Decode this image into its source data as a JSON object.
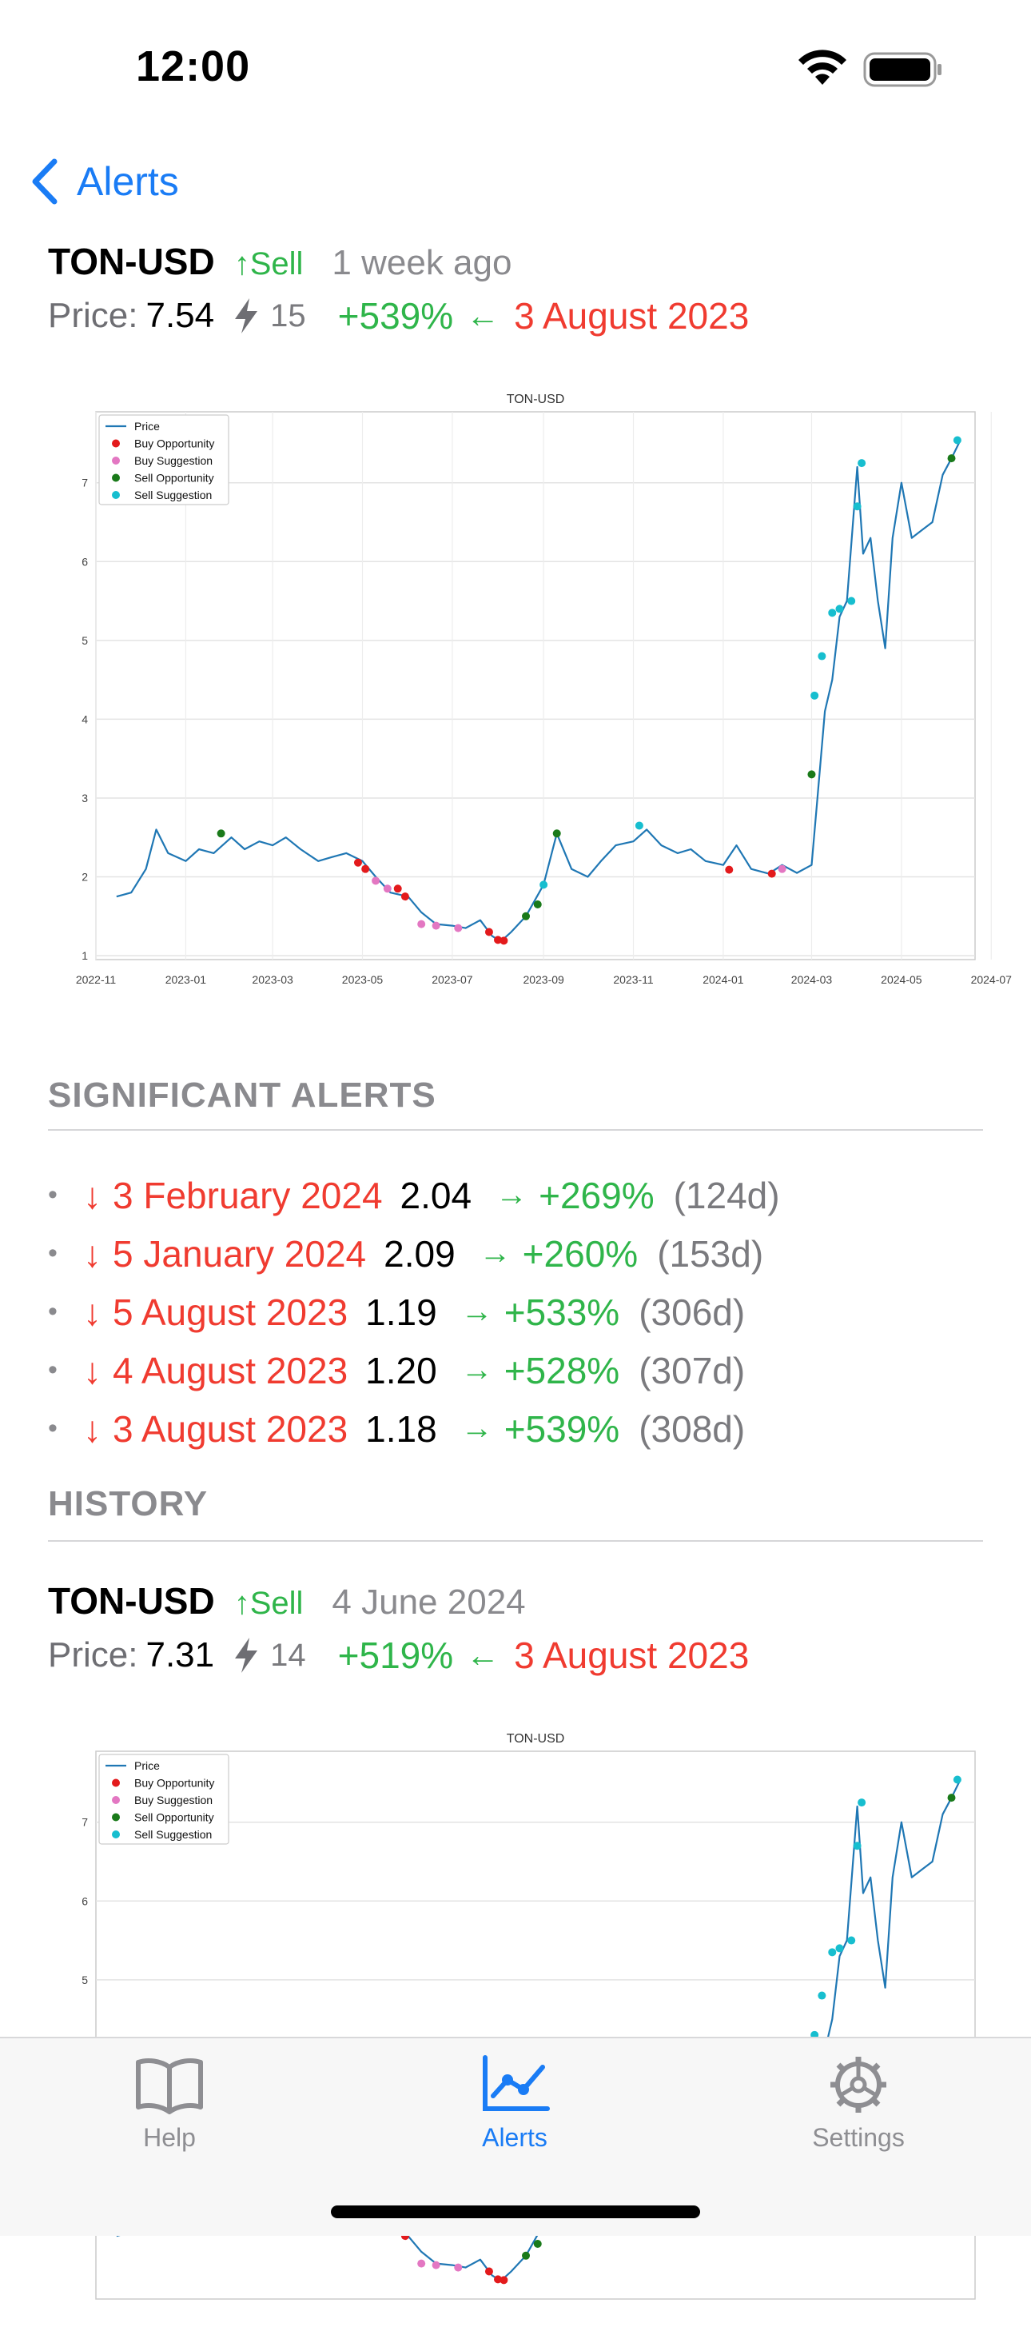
{
  "status": {
    "time": "12:00"
  },
  "nav": {
    "back_label": "Alerts"
  },
  "current_alert": {
    "ticker": "TON-USD",
    "signal": "↑Sell",
    "when": "1 week ago",
    "price_label": "Price:",
    "price": "7.54",
    "count": "15",
    "gain": "+539%",
    "arrow": "←",
    "ref_date": "3 August 2023"
  },
  "sections": {
    "significant": "SIGNIFICANT ALERTS",
    "history": "HISTORY"
  },
  "significant_alerts": [
    {
      "arrow": "↓",
      "date": "3 February 2024",
      "price": "2.04",
      "to": "→",
      "gain": "+269%",
      "days": "(124d)"
    },
    {
      "arrow": "↓",
      "date": "5 January 2024",
      "price": "2.09",
      "to": "→",
      "gain": "+260%",
      "days": "(153d)"
    },
    {
      "arrow": "↓",
      "date": "5 August 2023",
      "price": "1.19",
      "to": "→",
      "gain": "+533%",
      "days": "(306d)"
    },
    {
      "arrow": "↓",
      "date": "4 August 2023",
      "price": "1.20",
      "to": "→",
      "gain": "+528%",
      "days": "(307d)"
    },
    {
      "arrow": "↓",
      "date": "3 August 2023",
      "price": "1.18",
      "to": "→",
      "gain": "+539%",
      "days": "(308d)"
    }
  ],
  "history_alert": {
    "ticker": "TON-USD",
    "signal": "↑Sell",
    "when": "4 June 2024",
    "price_label": "Price:",
    "price": "7.31",
    "count": "14",
    "gain": "+519%",
    "arrow": "←",
    "ref_date": "3 August 2023"
  },
  "chart_data": [
    {
      "type": "line",
      "title": "TON-USD",
      "xlabel": "",
      "ylabel": "",
      "x_ticks": [
        "2022-11",
        "2023-01",
        "2023-03",
        "2023-05",
        "2023-07",
        "2023-09",
        "2023-11",
        "2024-01",
        "2024-03",
        "2024-05",
        "2024-07"
      ],
      "y_ticks": [
        "1",
        "2",
        "3",
        "4",
        "5",
        "6",
        "7"
      ],
      "ylim": [
        0.95,
        7.9
      ],
      "xlim": [
        "2022-11-01",
        "2024-06-20"
      ],
      "grid": true,
      "legend_position": "top-left",
      "legend": [
        "Price",
        "Buy Opportunity",
        "Buy Suggestion",
        "Sell Opportunity",
        "Sell Suggestion"
      ],
      "colors": {
        "price": "#1f77b4",
        "buy_opportunity": "#e31a1c",
        "buy_suggestion": "#e377c2",
        "sell_opportunity": "#1a7a1a",
        "sell_suggestion": "#17becf"
      },
      "series": [
        {
          "name": "Price",
          "x": [
            "2022-11-15",
            "2022-11-25",
            "2022-12-05",
            "2022-12-12",
            "2022-12-20",
            "2023-01-01",
            "2023-01-10",
            "2023-01-20",
            "2023-02-01",
            "2023-02-10",
            "2023-02-20",
            "2023-03-01",
            "2023-03-10",
            "2023-03-20",
            "2023-04-01",
            "2023-04-10",
            "2023-04-20",
            "2023-05-01",
            "2023-05-10",
            "2023-05-20",
            "2023-06-01",
            "2023-06-10",
            "2023-06-20",
            "2023-07-01",
            "2023-07-10",
            "2023-07-20",
            "2023-07-28",
            "2023-08-03",
            "2023-08-10",
            "2023-08-20",
            "2023-09-01",
            "2023-09-10",
            "2023-09-20",
            "2023-10-01",
            "2023-10-10",
            "2023-10-20",
            "2023-11-01",
            "2023-11-10",
            "2023-11-20",
            "2023-12-01",
            "2023-12-10",
            "2023-12-20",
            "2024-01-01",
            "2024-01-10",
            "2024-01-20",
            "2024-02-01",
            "2024-02-10",
            "2024-02-20",
            "2024-03-01",
            "2024-03-05",
            "2024-03-10",
            "2024-03-15",
            "2024-03-20",
            "2024-03-25",
            "2024-04-01",
            "2024-04-05",
            "2024-04-10",
            "2024-04-15",
            "2024-04-20",
            "2024-04-25",
            "2024-05-01",
            "2024-05-08",
            "2024-05-15",
            "2024-05-22",
            "2024-05-29",
            "2024-06-04",
            "2024-06-10"
          ],
          "values": [
            1.75,
            1.8,
            2.1,
            2.6,
            2.3,
            2.2,
            2.35,
            2.3,
            2.5,
            2.35,
            2.45,
            2.4,
            2.5,
            2.35,
            2.2,
            2.25,
            2.3,
            2.2,
            2.0,
            1.8,
            1.75,
            1.55,
            1.4,
            1.38,
            1.35,
            1.45,
            1.25,
            1.18,
            1.3,
            1.5,
            1.9,
            2.55,
            2.1,
            2.0,
            2.2,
            2.4,
            2.45,
            2.6,
            2.4,
            2.3,
            2.35,
            2.2,
            2.15,
            2.4,
            2.1,
            2.04,
            2.15,
            2.05,
            2.15,
            3.0,
            4.1,
            4.5,
            5.3,
            5.5,
            7.2,
            6.1,
            6.3,
            5.5,
            4.9,
            6.3,
            7.0,
            6.3,
            6.4,
            6.5,
            7.1,
            7.31,
            7.54
          ]
        },
        {
          "name": "Buy Opportunity",
          "x": [
            "2023-04-28",
            "2023-05-03",
            "2023-05-25",
            "2023-05-30",
            "2023-07-26",
            "2023-08-01",
            "2023-08-05",
            "2024-01-05",
            "2024-02-03"
          ],
          "values": [
            2.18,
            2.1,
            1.85,
            1.75,
            1.3,
            1.2,
            1.19,
            2.09,
            2.04
          ]
        },
        {
          "name": "Buy Suggestion",
          "x": [
            "2023-05-10",
            "2023-05-18",
            "2023-06-10",
            "2023-06-20",
            "2023-07-05",
            "2024-02-10"
          ],
          "values": [
            1.95,
            1.85,
            1.4,
            1.38,
            1.35,
            2.1
          ]
        },
        {
          "name": "Sell Opportunity",
          "x": [
            "2023-01-25",
            "2023-08-20",
            "2023-08-28",
            "2023-09-10",
            "2024-03-01",
            "2024-06-04"
          ],
          "values": [
            2.55,
            1.5,
            1.65,
            2.55,
            3.3,
            7.31
          ]
        },
        {
          "name": "Sell Suggestion",
          "x": [
            "2023-09-01",
            "2023-11-05",
            "2024-03-03",
            "2024-03-08",
            "2024-03-15",
            "2024-03-20",
            "2024-03-28",
            "2024-04-01",
            "2024-04-04",
            "2024-06-08"
          ],
          "values": [
            1.9,
            2.65,
            4.3,
            4.8,
            5.35,
            5.4,
            5.5,
            6.7,
            7.25,
            7.54
          ]
        }
      ]
    },
    {
      "type": "line",
      "title": "TON-USD",
      "xlabel": "",
      "ylabel": "",
      "y_ticks": [
        "5",
        "6",
        "7"
      ],
      "ylim": [
        0.95,
        7.6
      ],
      "grid": true,
      "legend_position": "top-left",
      "legend": [
        "Price",
        "Buy Opportunity",
        "Buy Suggestion",
        "Sell Opportunity",
        "Sell Suggestion"
      ]
    }
  ]
}
